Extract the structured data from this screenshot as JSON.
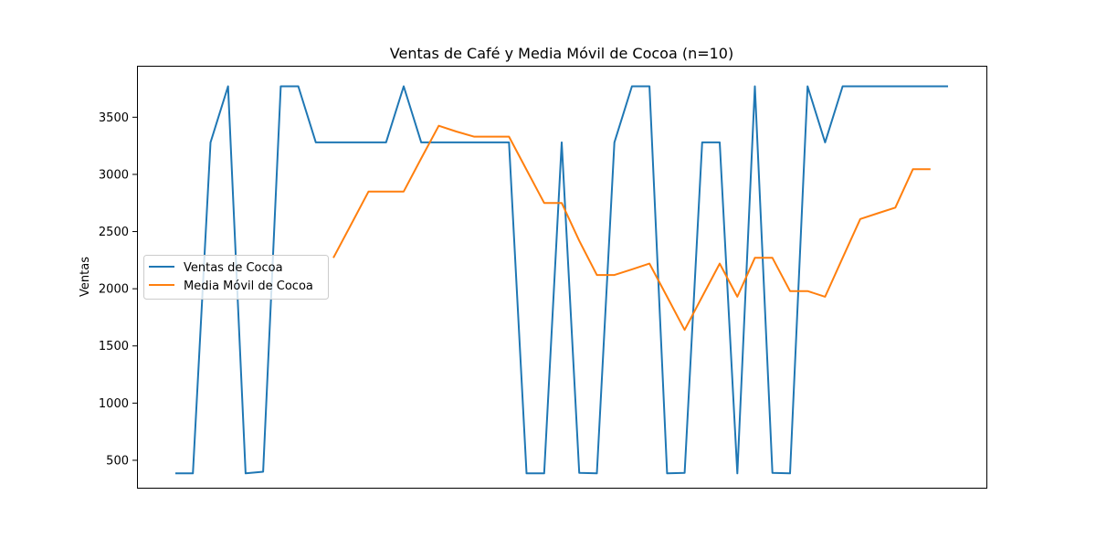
{
  "chart_data": {
    "type": "line",
    "title": "Ventas de Café y Media Móvil de Cocoa (n=10)",
    "xlabel": "",
    "ylabel": "Ventas",
    "ylim": [
      260,
      3950
    ],
    "yticks": [
      500,
      1000,
      1500,
      2000,
      2500,
      3000,
      3500
    ],
    "grid": false,
    "legend_position": "center-left",
    "series": [
      {
        "name": "Ventas de Cocoa",
        "color": "#1f77b4",
        "values": [
          385,
          385,
          3280,
          3770,
          385,
          400,
          3770,
          3770,
          3280,
          3280,
          3280,
          3280,
          3280,
          3770,
          3280,
          3280,
          3280,
          3280,
          3280,
          3280,
          385,
          385,
          3280,
          390,
          385,
          3280,
          3770,
          3770,
          385,
          390,
          3280,
          3280,
          385,
          3770,
          390,
          385,
          3770,
          3280,
          3770,
          3770,
          3770,
          3770,
          3770,
          3770,
          3770
        ]
      },
      {
        "name": "Media Móvil de Cocoa",
        "color": "#ff7f0e",
        "values": [
          null,
          null,
          null,
          null,
          null,
          null,
          null,
          null,
          null,
          2270,
          2560,
          2850,
          2850,
          2850,
          3140,
          3425,
          3375,
          3330,
          3330,
          3330,
          3040,
          2750,
          2750,
          2420,
          2120,
          2120,
          2170,
          2220,
          1930,
          1640,
          1930,
          2220,
          1930,
          2270,
          2270,
          1980,
          1980,
          1930,
          2270,
          2610,
          2660,
          2710,
          3045,
          3045,
          null
        ]
      }
    ]
  }
}
